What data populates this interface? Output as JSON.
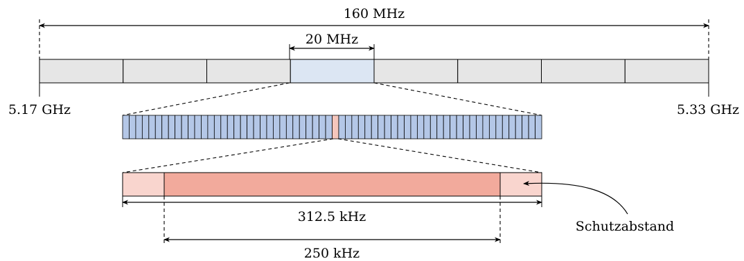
{
  "labels": {
    "total_width": "160 MHz",
    "channel_width": "20 MHz",
    "freq_start": "5.17 GHz",
    "freq_end": "5.33 GHz",
    "subcarrier_spacing": "312.5 kHz",
    "signal_width": "250 kHz",
    "guard_band": "Schutzabstand"
  },
  "band": {
    "channel_count": 8,
    "highlighted_channel": 4
  },
  "subcarriers": {
    "count": 64,
    "highlighted_index": 32
  },
  "colors": {
    "channel_fill": "#e6e6e6",
    "highlight_channel_fill": "#dce6f3",
    "subcarrier_fill": "#b4c7e7",
    "highlight_subcarrier_fill": "#f5c6bc",
    "signal_fill": "#f2aa9c",
    "guard_fill": "#f9d5ce"
  }
}
